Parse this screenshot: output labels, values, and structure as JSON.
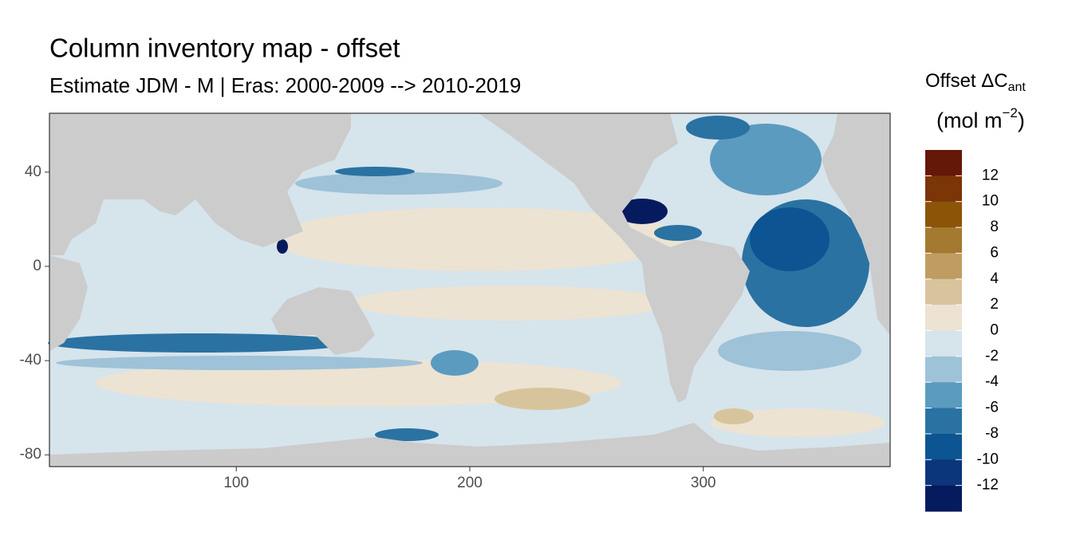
{
  "chart_data": {
    "type": "raster-map",
    "title": "Column inventory map - offset",
    "subtitle": "Estimate JDM - M | Eras: 2000-2009 --> 2010-2019",
    "xlim": [
      20,
      380
    ],
    "xticks": [
      100,
      200,
      300
    ],
    "ylim": [
      -85,
      65
    ],
    "yticks": [
      40,
      0,
      -40,
      -80
    ],
    "land_color": "#cccccc",
    "legend": {
      "title": "Offset ΔC",
      "title_subscript": "ant",
      "unit": "(mol m",
      "unit_superscript": "−2",
      "unit_close": ")",
      "limits": [
        -14,
        14
      ],
      "ticks": [
        12,
        10,
        8,
        6,
        4,
        2,
        0,
        -2,
        -4,
        -6,
        -8,
        -10,
        -12
      ],
      "colors": [
        "#661807",
        "#7b3506",
        "#8c5406",
        "#a47a30",
        "#bf9d62",
        "#d8c49c",
        "#ece3d3",
        "#d6e4ec",
        "#9ec2d8",
        "#5b9bbf",
        "#2a72a2",
        "#0c5592",
        "#0b367c",
        "#061a5e"
      ]
    }
  }
}
